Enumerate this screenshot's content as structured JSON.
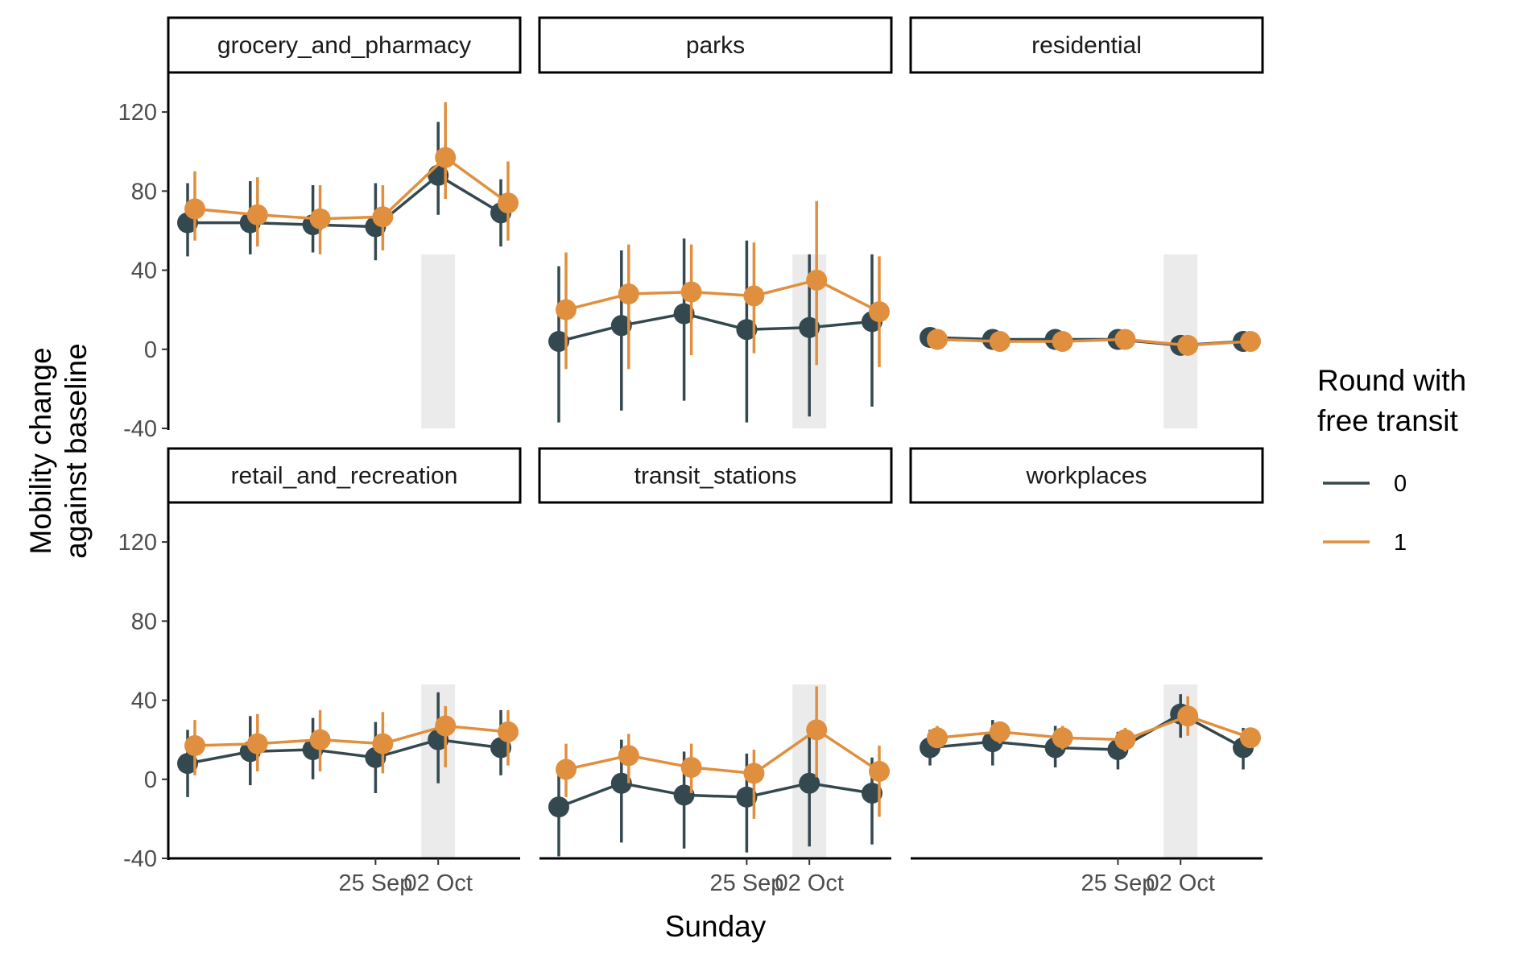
{
  "chart_data": {
    "type": "line",
    "facet_layout": "2x3",
    "xlabel": "Sunday",
    "ylabel_lines": [
      "Mobility change",
      "against baseline"
    ],
    "ylim": [
      -40,
      140
    ],
    "y_ticks": [
      -40,
      0,
      40,
      80,
      120
    ],
    "x_tick_labels": [
      "25 Sep",
      "02 Oct"
    ],
    "grid": false,
    "legend": {
      "title_lines": [
        "Round with",
        "free transit"
      ],
      "position": "right",
      "entries": [
        {
          "label": "0",
          "color": "#34484f"
        },
        {
          "label": "1",
          "color": "#e08f3e"
        }
      ]
    },
    "colors": {
      "round_0": "#34484f",
      "round_1": "#e08f3e",
      "shade": "#ebebeb"
    },
    "panels": [
      {
        "name": "grocery_and_pharmacy",
        "shaded_point": 5,
        "series": [
          {
            "round": "0",
            "values": [
              64,
              64,
              63,
              62,
              88,
              69
            ],
            "ci_low": [
              47,
              48,
              49,
              45,
              68,
              52
            ],
            "ci_high": [
              84,
              85,
              83,
              84,
              115,
              86
            ]
          },
          {
            "round": "1",
            "values": [
              71,
              68,
              66,
              67,
              97,
              74
            ],
            "ci_low": [
              55,
              52,
              48,
              50,
              76,
              55
            ],
            "ci_high": [
              90,
              87,
              83,
              83,
              125,
              95
            ]
          }
        ]
      },
      {
        "name": "parks",
        "shaded_point": 5,
        "series": [
          {
            "round": "0",
            "values": [
              4,
              12,
              18,
              10,
              11,
              14
            ],
            "ci_low": [
              -37,
              -31,
              -26,
              -37,
              -34,
              -29
            ],
            "ci_high": [
              42,
              50,
              56,
              55,
              48,
              48
            ]
          },
          {
            "round": "1",
            "values": [
              20,
              28,
              29,
              27,
              35,
              19
            ],
            "ci_low": [
              -10,
              -10,
              -3,
              -2,
              -8,
              -9
            ],
            "ci_high": [
              49,
              53,
              53,
              54,
              75,
              47
            ]
          }
        ]
      },
      {
        "name": "residential",
        "shaded_point": 5,
        "series": [
          {
            "round": "0",
            "values": [
              6,
              5,
              5,
              5,
              2,
              4
            ],
            "ci_low": [
              5,
              4,
              4,
              4,
              1,
              3
            ],
            "ci_high": [
              7,
              6,
              6,
              6,
              3,
              5
            ]
          },
          {
            "round": "1",
            "values": [
              5,
              4,
              4,
              5,
              2,
              4
            ],
            "ci_low": [
              4,
              3,
              3,
              4,
              1,
              3
            ],
            "ci_high": [
              6,
              5,
              5,
              6,
              3,
              5
            ]
          }
        ]
      },
      {
        "name": "retail_and_recreation",
        "shaded_point": 5,
        "series": [
          {
            "round": "0",
            "values": [
              8,
              14,
              15,
              11,
              20,
              16
            ],
            "ci_low": [
              -9,
              -3,
              0,
              -7,
              -2,
              2
            ],
            "ci_high": [
              25,
              32,
              31,
              29,
              44,
              35
            ]
          },
          {
            "round": "1",
            "values": [
              17,
              18,
              20,
              18,
              27,
              24
            ],
            "ci_low": [
              2,
              4,
              4,
              3,
              6,
              7
            ],
            "ci_high": [
              30,
              33,
              35,
              34,
              37,
              35
            ]
          }
        ]
      },
      {
        "name": "transit_stations",
        "shaded_point": 5,
        "series": [
          {
            "round": "0",
            "values": [
              -14,
              -2,
              -8,
              -9,
              -2,
              -7
            ],
            "ci_low": [
              -39,
              -32,
              -35,
              -37,
              -34,
              -33
            ],
            "ci_high": [
              8,
              20,
              14,
              13,
              22,
              11
            ]
          },
          {
            "round": "1",
            "values": [
              5,
              12,
              6,
              3,
              25,
              4
            ],
            "ci_low": [
              -9,
              -2,
              -7,
              -20,
              1,
              -19
            ],
            "ci_high": [
              18,
              23,
              18,
              15,
              47,
              17
            ]
          }
        ]
      },
      {
        "name": "workplaces",
        "shaded_point": 5,
        "series": [
          {
            "round": "0",
            "values": [
              16,
              19,
              16,
              15,
              33,
              16
            ],
            "ci_low": [
              7,
              7,
              6,
              5,
              21,
              5
            ],
            "ci_high": [
              25,
              30,
              27,
              24,
              43,
              26
            ]
          },
          {
            "round": "1",
            "values": [
              21,
              24,
              21,
              20,
              32,
              21
            ],
            "ci_low": [
              16,
              18,
              15,
              14,
              22,
              16
            ],
            "ci_high": [
              27,
              29,
              27,
              26,
              42,
              26
            ]
          }
        ]
      }
    ]
  }
}
